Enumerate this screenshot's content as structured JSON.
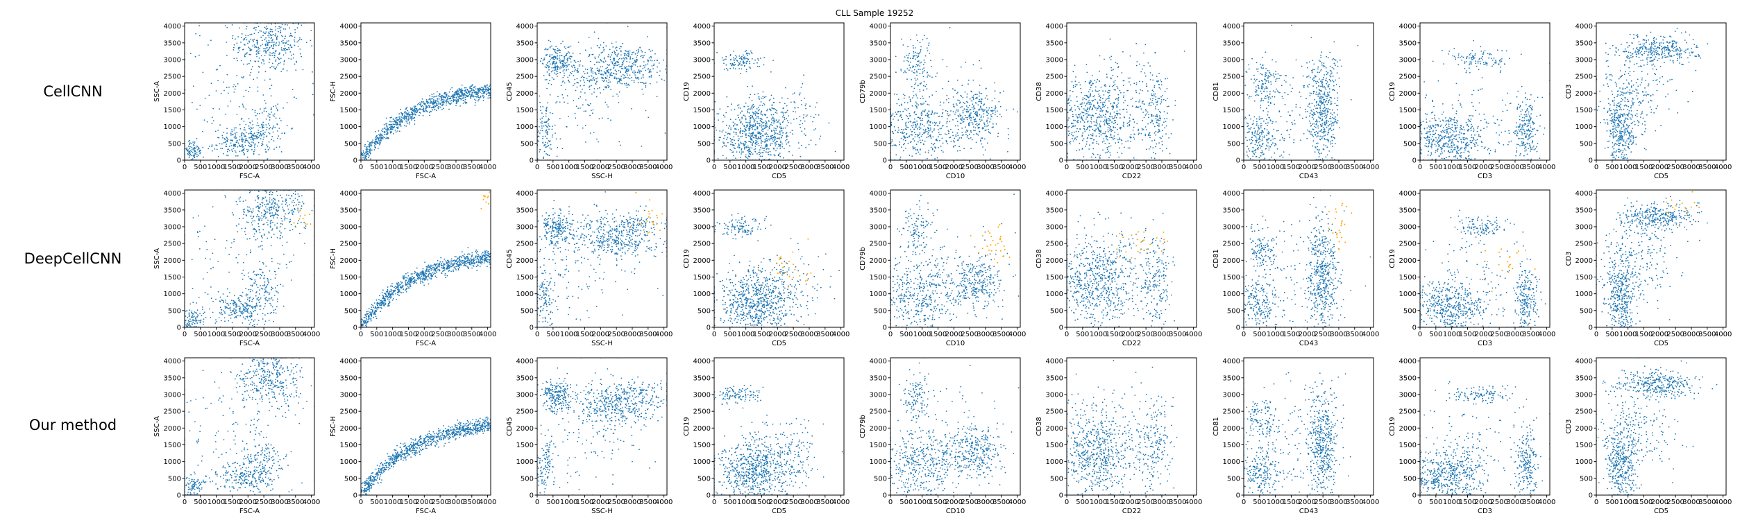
{
  "title": "CLL Sample 19252",
  "row_labels": [
    "CellCNN",
    "DeepCellCNN",
    "Our method"
  ],
  "colors": {
    "points": "#1f77b4",
    "highlight": "#ffa500",
    "axis": "#000000",
    "background": "#ffffff"
  },
  "chart_data": {
    "type": "scatter",
    "title": "CLL Sample 19252",
    "xlim": [
      0,
      4096
    ],
    "ylim": [
      0,
      4096
    ],
    "ticks": [
      0,
      500,
      1000,
      1500,
      2000,
      2500,
      3000,
      3500,
      4000
    ],
    "panels": [
      {
        "xlabel": "FSC-A",
        "ylabel": "SSC-A"
      },
      {
        "xlabel": "FSC-A",
        "ylabel": "FSC-H"
      },
      {
        "xlabel": "SSC-H",
        "ylabel": "CD45"
      },
      {
        "xlabel": "CD5",
        "ylabel": "CD19"
      },
      {
        "xlabel": "CD10",
        "ylabel": "CD79b"
      },
      {
        "xlabel": "CD22",
        "ylabel": "CD38"
      },
      {
        "xlabel": "CD43",
        "ylabel": "CD81"
      },
      {
        "xlabel": "CD3",
        "ylabel": "CD19"
      },
      {
        "xlabel": "CD5",
        "ylabel": "CD3"
      }
    ],
    "rows": [
      {
        "name": "CellCNN",
        "highlighted_points": false
      },
      {
        "name": "DeepCellCNN",
        "highlighted_points": true
      },
      {
        "name": "Our method",
        "highlighted_points": false
      }
    ],
    "clusters": [
      [
        {
          "cx": 2700,
          "cy": 3500,
          "sx": 550,
          "sy": 450,
          "w": 0.4
        },
        {
          "cx": 1800,
          "cy": 500,
          "sx": 450,
          "sy": 220,
          "w": 0.22
        },
        {
          "cx": 2500,
          "cy": 1000,
          "sx": 300,
          "sy": 350,
          "w": 0.13
        },
        {
          "cx": 250,
          "cy": 250,
          "sx": 180,
          "sy": 180,
          "w": 0.1
        },
        {
          "cx": 1600,
          "cy": 2000,
          "sx": 1100,
          "sy": 1000,
          "w": 0.15
        }
      ],
      [
        {
          "line": true,
          "slope": 0.6,
          "curve": true,
          "spread": 120,
          "w": 1.0
        }
      ],
      [
        {
          "cx": 650,
          "cy": 2950,
          "sx": 250,
          "sy": 250,
          "w": 0.22
        },
        {
          "cx": 2500,
          "cy": 2550,
          "sx": 650,
          "sy": 220,
          "w": 0.28
        },
        {
          "cx": 2800,
          "cy": 3050,
          "sx": 700,
          "sy": 200,
          "w": 0.2
        },
        {
          "cx": 250,
          "cy": 800,
          "sx": 150,
          "sy": 500,
          "w": 0.12
        },
        {
          "cx": 1500,
          "cy": 2000,
          "sx": 1000,
          "sy": 900,
          "w": 0.18
        }
      ],
      [
        {
          "cx": 800,
          "cy": 2950,
          "sx": 350,
          "sy": 150,
          "w": 0.12
        },
        {
          "cx": 1300,
          "cy": 700,
          "sx": 650,
          "sy": 450,
          "w": 0.7
        },
        {
          "cx": 2000,
          "cy": 1300,
          "sx": 700,
          "sy": 500,
          "w": 0.18
        }
      ],
      [
        {
          "cx": 800,
          "cy": 2950,
          "sx": 250,
          "sy": 400,
          "w": 0.13
        },
        {
          "cx": 900,
          "cy": 900,
          "sx": 600,
          "sy": 550,
          "w": 0.45
        },
        {
          "cx": 2700,
          "cy": 1300,
          "sx": 400,
          "sy": 400,
          "w": 0.3
        },
        {
          "cx": 2000,
          "cy": 1500,
          "sx": 900,
          "sy": 800,
          "w": 0.12
        }
      ],
      [
        {
          "cx": 900,
          "cy": 1300,
          "sx": 650,
          "sy": 700,
          "w": 0.7
        },
        {
          "cx": 2800,
          "cy": 1400,
          "sx": 250,
          "sy": 800,
          "w": 0.2
        },
        {
          "cx": 1800,
          "cy": 1600,
          "sx": 700,
          "sy": 900,
          "w": 0.1
        }
      ],
      [
        {
          "cx": 600,
          "cy": 2300,
          "sx": 250,
          "sy": 300,
          "w": 0.13
        },
        {
          "cx": 500,
          "cy": 650,
          "sx": 300,
          "sy": 400,
          "w": 0.22
        },
        {
          "cx": 2500,
          "cy": 1500,
          "sx": 250,
          "sy": 850,
          "w": 0.5
        },
        {
          "cx": 1500,
          "cy": 1500,
          "sx": 900,
          "sy": 900,
          "w": 0.15
        }
      ],
      [
        {
          "cx": 1900,
          "cy": 3000,
          "sx": 500,
          "sy": 150,
          "w": 0.12
        },
        {
          "cx": 900,
          "cy": 600,
          "sx": 600,
          "sy": 400,
          "w": 0.55
        },
        {
          "cx": 3350,
          "cy": 900,
          "sx": 180,
          "sy": 500,
          "w": 0.23
        },
        {
          "cx": 1800,
          "cy": 1500,
          "sx": 900,
          "sy": 800,
          "w": 0.1
        }
      ],
      [
        {
          "cx": 2000,
          "cy": 3300,
          "sx": 600,
          "sy": 200,
          "w": 0.35
        },
        {
          "cx": 800,
          "cy": 900,
          "sx": 250,
          "sy": 600,
          "w": 0.4
        },
        {
          "cx": 1200,
          "cy": 2000,
          "sx": 600,
          "sy": 700,
          "w": 0.25
        }
      ]
    ],
    "highlight_clusters": [
      {
        "cx": 3800,
        "cy": 3300,
        "sx": 200,
        "sy": 300,
        "n": 15
      },
      {
        "cx": 4000,
        "cy": 3800,
        "sx": 80,
        "sy": 150,
        "n": 10
      },
      {
        "cx": 3600,
        "cy": 3300,
        "sx": 250,
        "sy": 250,
        "n": 20
      },
      {
        "cx": 2400,
        "cy": 1700,
        "sx": 350,
        "sy": 350,
        "n": 25
      },
      {
        "cx": 3300,
        "cy": 2300,
        "sx": 300,
        "sy": 300,
        "n": 30
      },
      {
        "cx": 2300,
        "cy": 2500,
        "sx": 500,
        "sy": 250,
        "n": 25
      },
      {
        "cx": 3000,
        "cy": 3000,
        "sx": 200,
        "sy": 400,
        "n": 25
      },
      {
        "cx": 2700,
        "cy": 1900,
        "sx": 400,
        "sy": 400,
        "n": 20
      },
      {
        "cx": 2600,
        "cy": 3600,
        "sx": 350,
        "sy": 200,
        "n": 15
      }
    ]
  }
}
